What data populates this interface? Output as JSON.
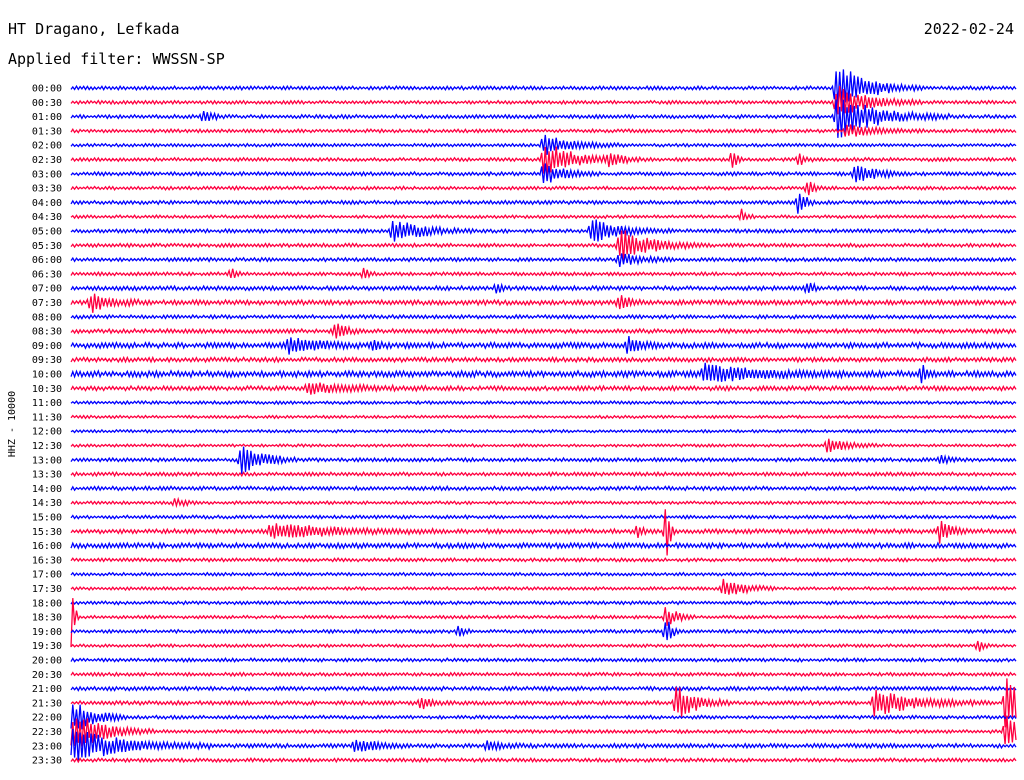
{
  "header": {
    "station": "HT Dragano, Lefkada",
    "date": "2022-02-24",
    "filter_label": "Applied filter: WWSSN-SP"
  },
  "chart_data": {
    "type": "helicorder",
    "ylabel": "HHZ - 10000",
    "colors": [
      "#0000ff",
      "#ff0040"
    ],
    "ticks": [
      "00:00",
      "00:30",
      "01:00",
      "01:30",
      "02:00",
      "02:30",
      "03:00",
      "03:30",
      "04:00",
      "04:30",
      "05:00",
      "05:30",
      "06:00",
      "06:30",
      "07:00",
      "07:30",
      "08:00",
      "08:30",
      "09:00",
      "09:30",
      "10:00",
      "10:30",
      "11:00",
      "11:30",
      "12:00",
      "12:30",
      "13:00",
      "13:30",
      "14:00",
      "14:30",
      "15:00",
      "15:30",
      "16:00",
      "16:30",
      "17:00",
      "17:30",
      "18:00",
      "18:30",
      "19:00",
      "19:30",
      "20:00",
      "20:30",
      "21:00",
      "21:30",
      "22:00",
      "22:30",
      "23:00",
      "23:30"
    ],
    "noise": [
      1.3,
      1.2,
      1.3,
      1.2,
      1.1,
      1.2,
      1.3,
      1.2,
      1.3,
      1.1,
      1.3,
      1.3,
      1.3,
      1.2,
      1.5,
      1.7,
      1.3,
      1.5,
      2.0,
      1.6,
      2.2,
      1.6,
      1.1,
      1.0,
      1.0,
      1.0,
      1.3,
      1.3,
      1.4,
      1.1,
      1.2,
      1.6,
      1.8,
      1.2,
      1.1,
      1.1,
      1.2,
      1.1,
      1.2,
      1.1,
      1.2,
      1.2,
      1.4,
      1.4,
      1.2,
      1.2,
      1.5,
      1.3
    ],
    "events": [
      {
        "row": 0,
        "t": 0.81,
        "amp": 25,
        "dur": 0.03
      },
      {
        "row": 1,
        "t": 0.81,
        "amp": 18,
        "dur": 0.03
      },
      {
        "row": 2,
        "t": 0.81,
        "amp": 22,
        "dur": 0.04
      },
      {
        "row": 3,
        "t": 0.82,
        "amp": 6,
        "dur": 0.03
      },
      {
        "row": 2,
        "t": 0.14,
        "amp": 6,
        "dur": 0.01
      },
      {
        "row": 4,
        "t": 0.5,
        "amp": 10,
        "dur": 0.03
      },
      {
        "row": 5,
        "t": 0.5,
        "amp": 20,
        "dur": 0.03
      },
      {
        "row": 6,
        "t": 0.5,
        "amp": 12,
        "dur": 0.02
      },
      {
        "row": 5,
        "t": 0.57,
        "amp": 6,
        "dur": 0.015
      },
      {
        "row": 5,
        "t": 0.7,
        "amp": 12,
        "dur": 0.004
      },
      {
        "row": 5,
        "t": 0.77,
        "amp": 8,
        "dur": 0.005
      },
      {
        "row": 6,
        "t": 0.83,
        "amp": 10,
        "dur": 0.02
      },
      {
        "row": 7,
        "t": 0.78,
        "amp": 10,
        "dur": 0.005
      },
      {
        "row": 8,
        "t": 0.77,
        "amp": 16,
        "dur": 0.006
      },
      {
        "row": 9,
        "t": 0.71,
        "amp": 8,
        "dur": 0.005
      },
      {
        "row": 10,
        "t": 0.34,
        "amp": 12,
        "dur": 0.03
      },
      {
        "row": 10,
        "t": 0.55,
        "amp": 12,
        "dur": 0.03
      },
      {
        "row": 11,
        "t": 0.58,
        "amp": 18,
        "dur": 0.03
      },
      {
        "row": 12,
        "t": 0.58,
        "amp": 8,
        "dur": 0.02
      },
      {
        "row": 13,
        "t": 0.17,
        "amp": 6,
        "dur": 0.005
      },
      {
        "row": 13,
        "t": 0.31,
        "amp": 6,
        "dur": 0.005
      },
      {
        "row": 15,
        "t": 0.02,
        "amp": 10,
        "dur": 0.02
      },
      {
        "row": 15,
        "t": 0.58,
        "amp": 8,
        "dur": 0.01
      },
      {
        "row": 14,
        "t": 0.45,
        "amp": 7,
        "dur": 0.005
      },
      {
        "row": 14,
        "t": 0.78,
        "amp": 8,
        "dur": 0.005
      },
      {
        "row": 17,
        "t": 0.28,
        "amp": 9,
        "dur": 0.01
      },
      {
        "row": 18,
        "t": 0.23,
        "amp": 8,
        "dur": 0.03
      },
      {
        "row": 18,
        "t": 0.59,
        "amp": 10,
        "dur": 0.01
      },
      {
        "row": 18,
        "t": 0.32,
        "amp": 8,
        "dur": 0.005
      },
      {
        "row": 20,
        "t": 0.67,
        "amp": 10,
        "dur": 0.05
      },
      {
        "row": 20,
        "t": 0.9,
        "amp": 10,
        "dur": 0.004
      },
      {
        "row": 21,
        "t": 0.25,
        "amp": 5,
        "dur": 0.05
      },
      {
        "row": 25,
        "t": 0.8,
        "amp": 8,
        "dur": 0.02
      },
      {
        "row": 26,
        "t": 0.18,
        "amp": 18,
        "dur": 0.02
      },
      {
        "row": 26,
        "t": 0.92,
        "amp": 5,
        "dur": 0.01
      },
      {
        "row": 29,
        "t": 0.11,
        "amp": 5,
        "dur": 0.01
      },
      {
        "row": 31,
        "t": 0.21,
        "amp": 8,
        "dur": 0.06
      },
      {
        "row": 31,
        "t": 0.6,
        "amp": 12,
        "dur": 0.003
      },
      {
        "row": 31,
        "t": 0.92,
        "amp": 14,
        "dur": 0.01
      },
      {
        "row": 31,
        "t": 0.63,
        "amp": 40,
        "dur": 0.003
      },
      {
        "row": 35,
        "t": 0.69,
        "amp": 10,
        "dur": 0.02
      },
      {
        "row": 37,
        "t": 0.63,
        "amp": 14,
        "dur": 0.01
      },
      {
        "row": 38,
        "t": 0.63,
        "amp": 20,
        "dur": 0.005
      },
      {
        "row": 38,
        "t": 0.41,
        "amp": 6,
        "dur": 0.005
      },
      {
        "row": 39,
        "t": 0.96,
        "amp": 8,
        "dur": 0.005
      },
      {
        "row": 43,
        "t": 0.64,
        "amp": 18,
        "dur": 0.02
      },
      {
        "row": 43,
        "t": 0.85,
        "amp": 14,
        "dur": 0.04
      },
      {
        "row": 43,
        "t": 0.37,
        "amp": 8,
        "dur": 0.01
      },
      {
        "row": 43,
        "t": 0.99,
        "amp": 40,
        "dur": 0.01
      },
      {
        "row": 45,
        "t": 0.99,
        "amp": 30,
        "dur": 0.01
      },
      {
        "row": 46,
        "t": 0.0,
        "amp": 18,
        "dur": 0.05
      },
      {
        "row": 45,
        "t": 0.0,
        "amp": 22,
        "dur": 0.03
      },
      {
        "row": 44,
        "t": 0.0,
        "amp": 20,
        "dur": 0.02
      },
      {
        "row": 46,
        "t": 0.3,
        "amp": 8,
        "dur": 0.02
      },
      {
        "row": 46,
        "t": 0.44,
        "amp": 6,
        "dur": 0.015
      },
      {
        "row": 37,
        "t": 0.0,
        "amp": 40,
        "dur": 0.003
      }
    ]
  }
}
